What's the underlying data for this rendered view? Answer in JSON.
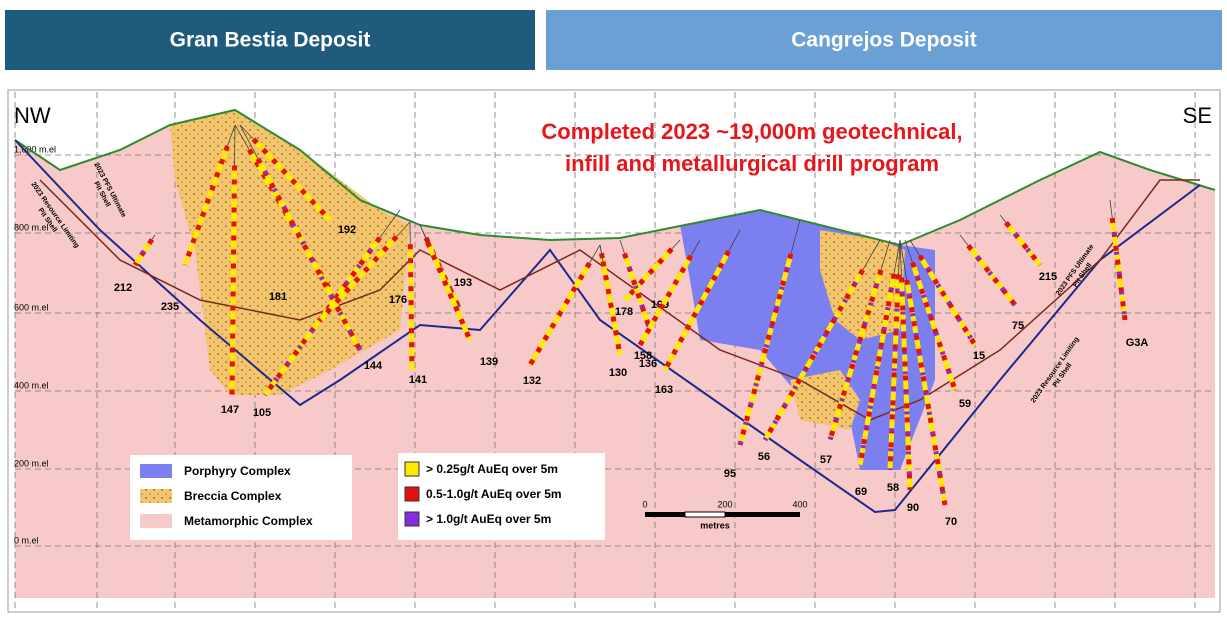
{
  "header": {
    "left_tab": "Gran Bestia Deposit",
    "right_tab": "Cangrejos Deposit"
  },
  "section": {
    "nw": "NW",
    "se": "SE",
    "title_lines": [
      "Completed 2023 ~19,000m geotechnical,",
      "infill and metallurgical drill program"
    ],
    "elevations": [
      "1,000 m.el",
      "800 m.el",
      "600 m.el",
      "400 m.el",
      "200 m.el",
      "0 m.el"
    ],
    "pit_shell_labels": [
      [
        "2023 PFS Ultimate",
        "Pit Shell"
      ],
      [
        "2023 Resource Limiting",
        "Pit Shell"
      ],
      [
        "2023 PFS Ultimate",
        "Pit Shell"
      ],
      [
        "2023 Resource Limiting",
        "Pit Shell"
      ]
    ],
    "holes": [
      "212",
      "235",
      "147",
      "105",
      "181",
      "192",
      "144",
      "176",
      "141",
      "193",
      "139",
      "132",
      "178",
      "130",
      "199",
      "158",
      "136",
      "163",
      "95",
      "56",
      "57",
      "69",
      "58",
      "90",
      "70",
      "59",
      "15",
      "75",
      "215",
      "G3A"
    ]
  },
  "legend": {
    "rock_units": [
      "Porphyry Complex",
      "Breccia Complex",
      "Metamorphic Complex"
    ],
    "grades": [
      "> 0.25g/t AuEq over 5m",
      "0.5-1.0g/t AuEq over 5m",
      "> 1.0g/t AuEq over 5m"
    ]
  },
  "scale": {
    "ticks": [
      "0",
      "200",
      "400"
    ],
    "unit": "metres"
  }
}
